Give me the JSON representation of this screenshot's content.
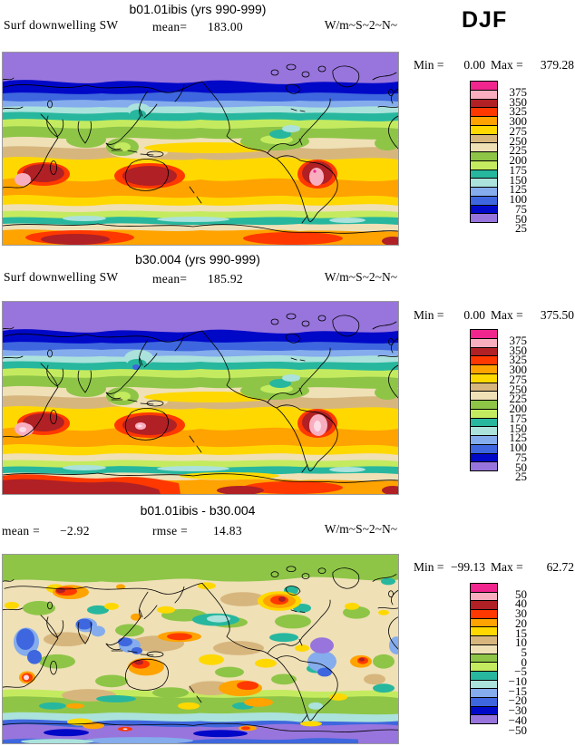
{
  "header": {
    "season": "DJF"
  },
  "panels": [
    {
      "title": "b01.01ibis (yrs 990-999)",
      "var_label": "Surf downwelling SW",
      "stat1_label": "mean=",
      "stat1_value": "183.00",
      "units": "W/m~S~2~N~",
      "min_label": "Min =",
      "min_value": "0.00",
      "max_label": "Max =",
      "max_value": "379.28",
      "cbar_labels": [
        "375",
        "350",
        "325",
        "300",
        "275",
        "250",
        "225",
        "200",
        "175",
        "150",
        "125",
        "100",
        "75",
        "50",
        "25"
      ]
    },
    {
      "title": "b30.004 (yrs 990-999)",
      "var_label": "Surf downwelling SW",
      "stat1_label": "mean=",
      "stat1_value": "185.92",
      "units": "W/m~S~2~N~",
      "min_label": "Min =",
      "min_value": "0.00",
      "max_label": "Max =",
      "max_value": "375.50",
      "cbar_labels": [
        "375",
        "350",
        "325",
        "300",
        "275",
        "250",
        "225",
        "200",
        "175",
        "150",
        "125",
        "100",
        "75",
        "50",
        "25"
      ]
    },
    {
      "title": "b01.01ibis - b30.004",
      "var_label": "",
      "stat1_label": "mean =",
      "stat1_value": "−2.92",
      "stat2_label": "rmse =",
      "stat2_value": "14.83",
      "units": "W/m~S~2~N~",
      "min_label": "Min =",
      "min_value": "−99.13",
      "max_label": "Max =",
      "max_value": "62.72",
      "cbar_labels": [
        "50",
        "40",
        "30",
        "20",
        "15",
        "10",
        "5",
        "0",
        "−5",
        "−10",
        "−15",
        "−20",
        "−30",
        "−40",
        "−50"
      ]
    }
  ],
  "palette_top_to_bottom": [
    "#F0258E",
    "#F9AEC0",
    "#B02025",
    "#FF3800",
    "#FFA300",
    "#FFD800",
    "#D7B67E",
    "#EFE0B6",
    "#8EC547",
    "#C4EB5F",
    "#27B79E",
    "#ABE2DC",
    "#85ACEC",
    "#3E66DE",
    "#0008C8",
    "#9875DC"
  ],
  "extra_colors": {
    "hot_core": "#FCDCE6",
    "coastline": "#000000",
    "map_border": "#9A9A9A"
  },
  "chart_data": [
    {
      "type": "heatmap",
      "panel": "top",
      "title": "b01.01ibis (yrs 990-999)",
      "variable": "Surf downwelling SW",
      "season": "DJF",
      "units": "W/m~S~2~N~",
      "mean": 183.0,
      "min": 0.0,
      "max": 379.28,
      "contour_levels": [
        25,
        50,
        75,
        100,
        125,
        150,
        175,
        200,
        225,
        250,
        275,
        300,
        325,
        350,
        375
      ],
      "palette_low_to_high": [
        "#9875DC",
        "#0008C8",
        "#3E66DE",
        "#85ACEC",
        "#ABE2DC",
        "#27B79E",
        "#C4EB5F",
        "#8EC547",
        "#EFE0B6",
        "#D7B67E",
        "#FFD800",
        "#FFA300",
        "#FF3800",
        "#B02025",
        "#F9AEC0",
        "#F0258E"
      ],
      "projection": "global latitude-longitude, Pacific-centered",
      "legend_position": "right"
    },
    {
      "type": "heatmap",
      "panel": "middle",
      "title": "b30.004 (yrs 990-999)",
      "variable": "Surf downwelling SW",
      "season": "DJF",
      "units": "W/m~S~2~N~",
      "mean": 185.92,
      "min": 0.0,
      "max": 375.5,
      "contour_levels": [
        25,
        50,
        75,
        100,
        125,
        150,
        175,
        200,
        225,
        250,
        275,
        300,
        325,
        350,
        375
      ],
      "palette_low_to_high": [
        "#9875DC",
        "#0008C8",
        "#3E66DE",
        "#85ACEC",
        "#ABE2DC",
        "#27B79E",
        "#C4EB5F",
        "#8EC547",
        "#EFE0B6",
        "#D7B67E",
        "#FFD800",
        "#FFA300",
        "#FF3800",
        "#B02025",
        "#F9AEC0",
        "#F0258E"
      ],
      "projection": "global latitude-longitude, Pacific-centered",
      "legend_position": "right"
    },
    {
      "type": "heatmap",
      "panel": "bottom",
      "title": "b01.01ibis - b30.004",
      "variable": "Surf downwelling SW",
      "season": "DJF",
      "units": "W/m~S~2~N~",
      "mean": -2.92,
      "rmse": 14.83,
      "min": -99.13,
      "max": 62.72,
      "contour_levels": [
        -50,
        -40,
        -30,
        -20,
        -15,
        -10,
        -5,
        0,
        5,
        10,
        15,
        20,
        30,
        40,
        50
      ],
      "palette_low_to_high": [
        "#9875DC",
        "#0008C8",
        "#3E66DE",
        "#85ACEC",
        "#ABE2DC",
        "#27B79E",
        "#C4EB5F",
        "#8EC547",
        "#EFE0B6",
        "#D7B67E",
        "#FFD800",
        "#FFA300",
        "#FF3800",
        "#B02025",
        "#F9AEC0",
        "#F0258E"
      ],
      "projection": "global latitude-longitude, Pacific-centered",
      "legend_position": "right"
    }
  ]
}
